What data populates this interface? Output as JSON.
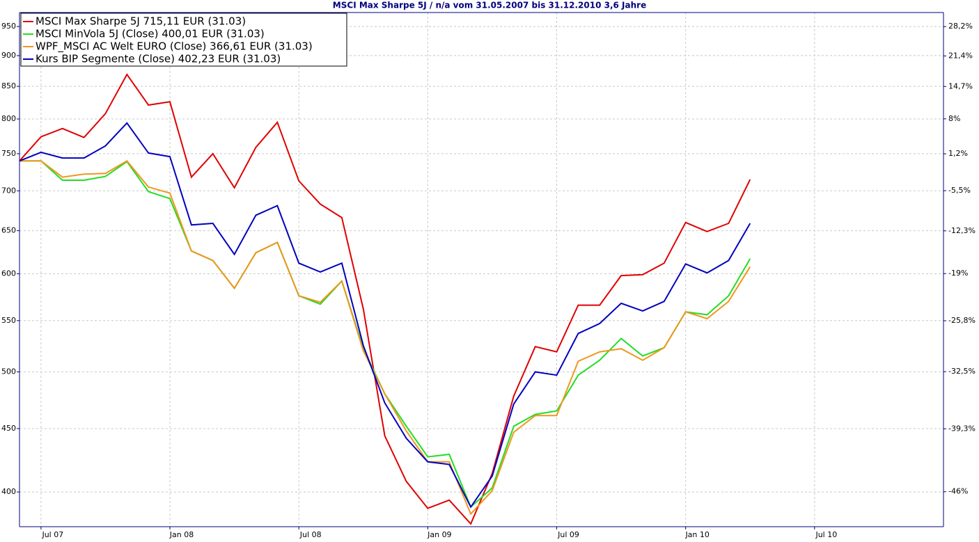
{
  "chart_data": {
    "type": "line",
    "title": "MSCI Max Sharpe 5J / n/a vom 31.05.2007 bis 31.12.2010 3,6 Jahre",
    "x": [
      "2007-05",
      "2007-06",
      "2007-07",
      "2007-08",
      "2007-09",
      "2007-10",
      "2007-11",
      "2007-12",
      "2008-01",
      "2008-02",
      "2008-03",
      "2008-04",
      "2008-05",
      "2008-06",
      "2008-07",
      "2008-08",
      "2008-09",
      "2008-10",
      "2008-11",
      "2008-12",
      "2009-01",
      "2009-02",
      "2009-03",
      "2009-04",
      "2009-05",
      "2009-06",
      "2009-07",
      "2009-08",
      "2009-09",
      "2009-10",
      "2009-11",
      "2009-12",
      "2010-01",
      "2010-02",
      "2010-03"
    ],
    "series": [
      {
        "name": "MSCI Max Sharpe 5J 715,11 EUR (31.03)",
        "color": "#e00000",
        "values": [
          740,
          774,
          786,
          773,
          808,
          869,
          821,
          826,
          718,
          750,
          704,
          759,
          795,
          713,
          683,
          666,
          562,
          444,
          408,
          388,
          394,
          377,
          414,
          478,
          524,
          519,
          566,
          566,
          598,
          599,
          612,
          660,
          649,
          659,
          715
        ]
      },
      {
        "name": "MSCI MinVola 5J (Close) 400,01 EUR (31.03)",
        "color": "#22dd22",
        "values": [
          740,
          740,
          714,
          714,
          719,
          739,
          699,
          690,
          626,
          615,
          584,
          624,
          636,
          576,
          567,
          592,
          522,
          480,
          452,
          427,
          429,
          389,
          403,
          452,
          462,
          465,
          497,
          511,
          532,
          515,
          523,
          559,
          556,
          576,
          617
        ]
      },
      {
        "name": "WPF_MSCI AC Welt EURO (Close) 366,61 EUR (31.03)",
        "color": "#f0961e",
        "values": [
          740,
          740,
          718,
          722,
          723,
          740,
          705,
          697,
          626,
          615,
          584,
          624,
          636,
          576,
          569,
          592,
          520,
          480,
          448,
          423,
          423,
          384,
          401,
          447,
          461,
          461,
          510,
          519,
          522,
          511,
          523,
          559,
          552,
          570,
          608
        ]
      },
      {
        "name": "Kurs BIP Segmente (Close) 402,23 EUR (31.03)",
        "color": "#0000c0",
        "values": [
          740,
          752,
          744,
          744,
          761,
          794,
          751,
          746,
          657,
          659,
          622,
          669,
          681,
          612,
          602,
          612,
          525,
          472,
          442,
          423,
          421,
          389,
          412,
          471,
          500,
          497,
          537,
          547,
          568,
          560,
          570,
          611,
          601,
          615,
          659
        ]
      }
    ],
    "xlim": [
      "2007-06",
      "2011-01"
    ],
    "xticks": [
      {
        "value": "2007-07",
        "label": "Jul 07"
      },
      {
        "value": "2008-01",
        "label": "Jan 08"
      },
      {
        "value": "2008-07",
        "label": "Jul 08"
      },
      {
        "value": "2009-01",
        "label": "Jan 09"
      },
      {
        "value": "2009-07",
        "label": "Jul 09"
      },
      {
        "value": "2010-01",
        "label": "Jan 10"
      },
      {
        "value": "2010-07",
        "label": "Jul 10"
      }
    ],
    "ylim": [
      375,
      975
    ],
    "log_y": true,
    "yticks": [
      400,
      450,
      500,
      550,
      600,
      650,
      700,
      750,
      800,
      850,
      900,
      950
    ],
    "y2lim": [
      -49.4,
      31.6
    ],
    "y2ticks": [
      {
        "value": -46,
        "label": "-46%"
      },
      {
        "value": -39.3,
        "label": "-39,3%"
      },
      {
        "value": -32.5,
        "label": "-32,5%"
      },
      {
        "value": -25.8,
        "label": "-25,8%"
      },
      {
        "value": -19,
        "label": "-19%"
      },
      {
        "value": -12.3,
        "label": "-12,3%"
      },
      {
        "value": -5.5,
        "label": "-5,5%"
      },
      {
        "value": 1.2,
        "label": "1,2%"
      },
      {
        "value": 8,
        "label": "8%"
      },
      {
        "value": 14.7,
        "label": "14,7%"
      },
      {
        "value": 21.4,
        "label": "21,4%"
      },
      {
        "value": 28.2,
        "label": "28,2%"
      }
    ],
    "grid": true,
    "legend": "top-left"
  }
}
